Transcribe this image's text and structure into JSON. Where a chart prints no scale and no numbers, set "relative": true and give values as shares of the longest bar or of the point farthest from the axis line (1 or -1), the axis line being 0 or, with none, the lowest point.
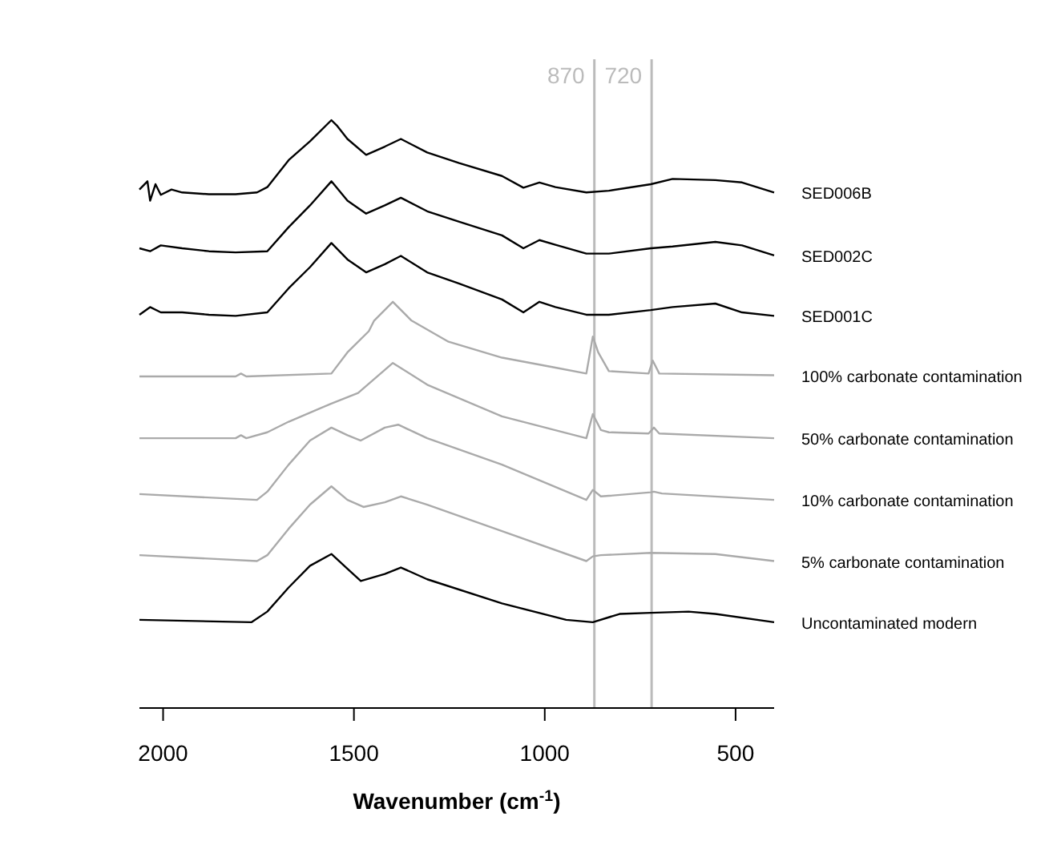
{
  "chart_data": {
    "type": "line",
    "relative": true,
    "xlabel": "Wavenumber (cm$^{-1}$)",
    "xlim": [
      2062,
      399
    ],
    "xticks": [
      2000,
      1500,
      1000,
      500
    ],
    "grid": false,
    "legend": false,
    "tick_labels": "x",
    "line_style": "solid",
    "marker": "none",
    "ref_lines": [
      {
        "axis": "x",
        "value": 870,
        "label": "870",
        "color": "#bbbbbb"
      },
      {
        "axis": "x",
        "value": 720,
        "label": "720",
        "color": "#bbbbbb"
      }
    ],
    "series": [
      {
        "name": "SED006B",
        "color": "#000000",
        "x": [
          2062,
          2041,
          2034,
          2020,
          2006,
          1978,
          1950,
          1880,
          1810,
          1754,
          1727,
          1671,
          1615,
          1559,
          1545,
          1517,
          1468,
          1419,
          1377,
          1308,
          1224,
          1112,
          1056,
          1014,
          972,
          891,
          832,
          722,
          665,
          553,
          483,
          399
        ],
        "values": [
          0.882,
          0.896,
          0.863,
          0.891,
          0.873,
          0.882,
          0.877,
          0.874,
          0.874,
          0.877,
          0.886,
          0.932,
          0.964,
          1.0,
          0.991,
          0.968,
          0.941,
          0.955,
          0.968,
          0.945,
          0.927,
          0.905,
          0.885,
          0.894,
          0.886,
          0.877,
          0.88,
          0.891,
          0.9,
          0.898,
          0.894,
          0.877
        ]
      },
      {
        "name": "SED002C",
        "color": "#000000",
        "x": [
          2062,
          2034,
          2006,
          1950,
          1880,
          1810,
          1727,
          1671,
          1615,
          1559,
          1517,
          1468,
          1419,
          1377,
          1308,
          1224,
          1112,
          1056,
          1014,
          972,
          891,
          832,
          722,
          665,
          553,
          483,
          399
        ],
        "values": [
          0.782,
          0.777,
          0.787,
          0.782,
          0.777,
          0.775,
          0.777,
          0.818,
          0.855,
          0.896,
          0.863,
          0.841,
          0.855,
          0.868,
          0.845,
          0.827,
          0.804,
          0.782,
          0.796,
          0.788,
          0.773,
          0.773,
          0.782,
          0.785,
          0.793,
          0.787,
          0.77
        ]
      },
      {
        "name": "SED001C",
        "color": "#000000",
        "x": [
          2062,
          2034,
          2006,
          1950,
          1880,
          1810,
          1727,
          1671,
          1615,
          1559,
          1517,
          1468,
          1419,
          1377,
          1308,
          1224,
          1112,
          1056,
          1014,
          972,
          891,
          832,
          722,
          665,
          553,
          483,
          399
        ],
        "values": [
          0.669,
          0.682,
          0.673,
          0.673,
          0.669,
          0.667,
          0.673,
          0.714,
          0.75,
          0.791,
          0.763,
          0.741,
          0.755,
          0.769,
          0.741,
          0.722,
          0.695,
          0.673,
          0.691,
          0.682,
          0.669,
          0.669,
          0.677,
          0.682,
          0.688,
          0.673,
          0.667
        ]
      },
      {
        "name": "100% carbonate contamination",
        "color": "#aaaaaa",
        "x": [
          2062,
          1810,
          1796,
          1782,
          1559,
          1517,
          1461,
          1447,
          1398,
          1349,
          1252,
          1112,
          972,
          891,
          874,
          860,
          832,
          728,
          717,
          700,
          399
        ],
        "values": [
          0.564,
          0.564,
          0.569,
          0.564,
          0.569,
          0.605,
          0.641,
          0.659,
          0.691,
          0.659,
          0.623,
          0.596,
          0.579,
          0.569,
          0.632,
          0.605,
          0.573,
          0.569,
          0.591,
          0.569,
          0.566
        ]
      },
      {
        "name": "50% carbonate contamination",
        "color": "#aaaaaa",
        "x": [
          2062,
          1810,
          1796,
          1782,
          1727,
          1671,
          1559,
          1489,
          1398,
          1308,
          1112,
          891,
          874,
          853,
          832,
          728,
          714,
          700,
          399
        ],
        "values": [
          0.459,
          0.459,
          0.464,
          0.459,
          0.469,
          0.487,
          0.518,
          0.536,
          0.587,
          0.55,
          0.496,
          0.459,
          0.5,
          0.473,
          0.469,
          0.467,
          0.477,
          0.467,
          0.459
        ]
      },
      {
        "name": "10% carbonate contamination",
        "color": "#aaaaaa",
        "x": [
          2062,
          1754,
          1727,
          1671,
          1615,
          1559,
          1517,
          1482,
          1419,
          1384,
          1308,
          1112,
          891,
          874,
          853,
          832,
          722,
          714,
          693,
          399
        ],
        "values": [
          0.364,
          0.354,
          0.368,
          0.414,
          0.455,
          0.477,
          0.464,
          0.455,
          0.477,
          0.482,
          0.459,
          0.414,
          0.354,
          0.371,
          0.36,
          0.361,
          0.367,
          0.368,
          0.365,
          0.354
        ]
      },
      {
        "name": "5% carbonate contamination",
        "color": "#aaaaaa",
        "x": [
          2062,
          1754,
          1727,
          1671,
          1615,
          1559,
          1517,
          1475,
          1419,
          1377,
          1308,
          1112,
          891,
          874,
          853,
          722,
          553,
          399
        ],
        "values": [
          0.26,
          0.25,
          0.26,
          0.305,
          0.346,
          0.377,
          0.354,
          0.342,
          0.35,
          0.36,
          0.346,
          0.301,
          0.25,
          0.258,
          0.26,
          0.264,
          0.262,
          0.25
        ]
      },
      {
        "name": "Uncontaminated modern",
        "color": "#000000",
        "x": [
          2062,
          1768,
          1727,
          1671,
          1615,
          1559,
          1517,
          1482,
          1419,
          1377,
          1308,
          1112,
          944,
          874,
          804,
          722,
          623,
          553,
          399
        ],
        "values": [
          0.15,
          0.146,
          0.164,
          0.205,
          0.242,
          0.262,
          0.237,
          0.216,
          0.228,
          0.239,
          0.219,
          0.178,
          0.15,
          0.146,
          0.16,
          0.162,
          0.164,
          0.16,
          0.146
        ]
      }
    ]
  }
}
